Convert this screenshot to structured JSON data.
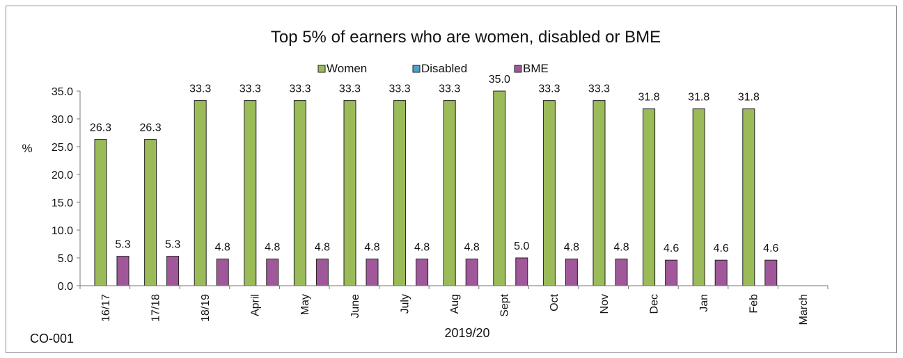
{
  "chart_data": {
    "type": "bar",
    "title": "Top 5% of earners who are women, disabled or BME",
    "ylabel": "%",
    "xlabel": "2019/20",
    "footnote": "CO-001",
    "ylim": [
      0,
      35
    ],
    "ytick_step": 5,
    "ytick_labels": [
      "0.0",
      "5.0",
      "10.0",
      "15.0",
      "20.0",
      "25.0",
      "30.0",
      "35.0"
    ],
    "categories": [
      "16/17",
      "17/18",
      "18/19",
      "April",
      "May",
      "June",
      "July",
      "Aug",
      "Sept",
      "Oct",
      "Nov",
      "Dec",
      "Jan",
      "Feb",
      "March"
    ],
    "legend_position": "top-center",
    "series": [
      {
        "name": "Women",
        "color": "#9bbb59",
        "values": [
          26.3,
          26.3,
          33.3,
          33.3,
          33.3,
          33.3,
          33.3,
          33.3,
          35.0,
          33.3,
          33.3,
          31.8,
          31.8,
          31.8,
          null
        ],
        "labels": [
          "26.3",
          "26.3",
          "33.3",
          "33.3",
          "33.3",
          "33.3",
          "33.3",
          "33.3",
          "35.0",
          "33.3",
          "33.3",
          "31.8",
          "31.8",
          "31.8",
          ""
        ]
      },
      {
        "name": "Disabled",
        "color": "#4f9fd1",
        "values": [
          null,
          null,
          null,
          null,
          null,
          null,
          null,
          null,
          null,
          null,
          null,
          null,
          null,
          null,
          null
        ],
        "labels": [
          "",
          "",
          "",
          "",
          "",
          "",
          "",
          "",
          "",
          "",
          "",
          "",
          "",
          "",
          ""
        ]
      },
      {
        "name": "BME",
        "color": "#a0589a",
        "values": [
          5.3,
          5.3,
          4.8,
          4.8,
          4.8,
          4.8,
          4.8,
          4.8,
          5.0,
          4.8,
          4.8,
          4.6,
          4.6,
          4.6,
          null
        ],
        "labels": [
          "5.3",
          "5.3",
          "4.8",
          "4.8",
          "4.8",
          "4.8",
          "4.8",
          "4.8",
          "5.0",
          "4.8",
          "4.8",
          "4.6",
          "4.6",
          "4.6",
          ""
        ]
      }
    ],
    "colors": {
      "axis": "#777777",
      "bar_edge": "#222222"
    }
  }
}
